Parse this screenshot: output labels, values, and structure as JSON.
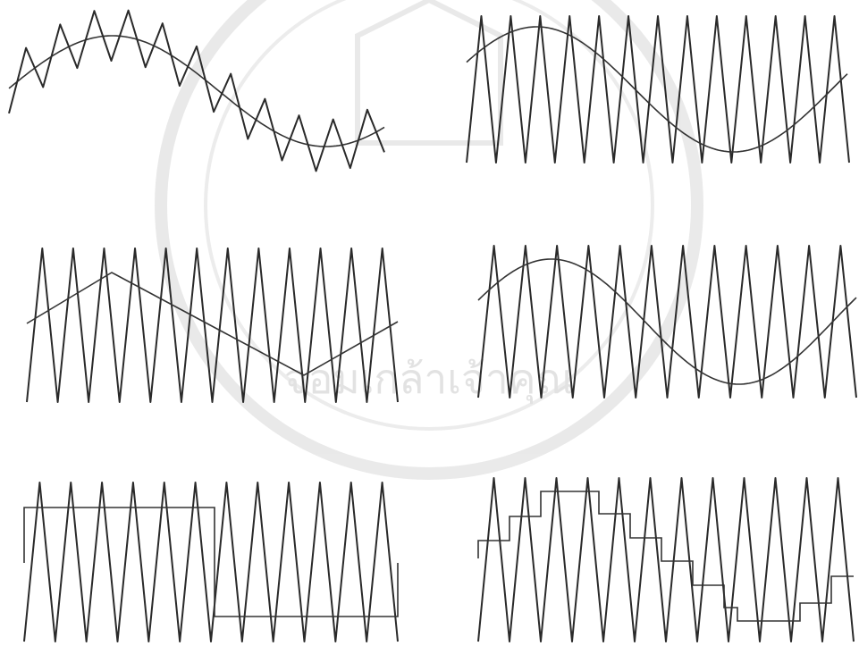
{
  "watermark": "จอมเกล้าเจ้าคุณ"
}
